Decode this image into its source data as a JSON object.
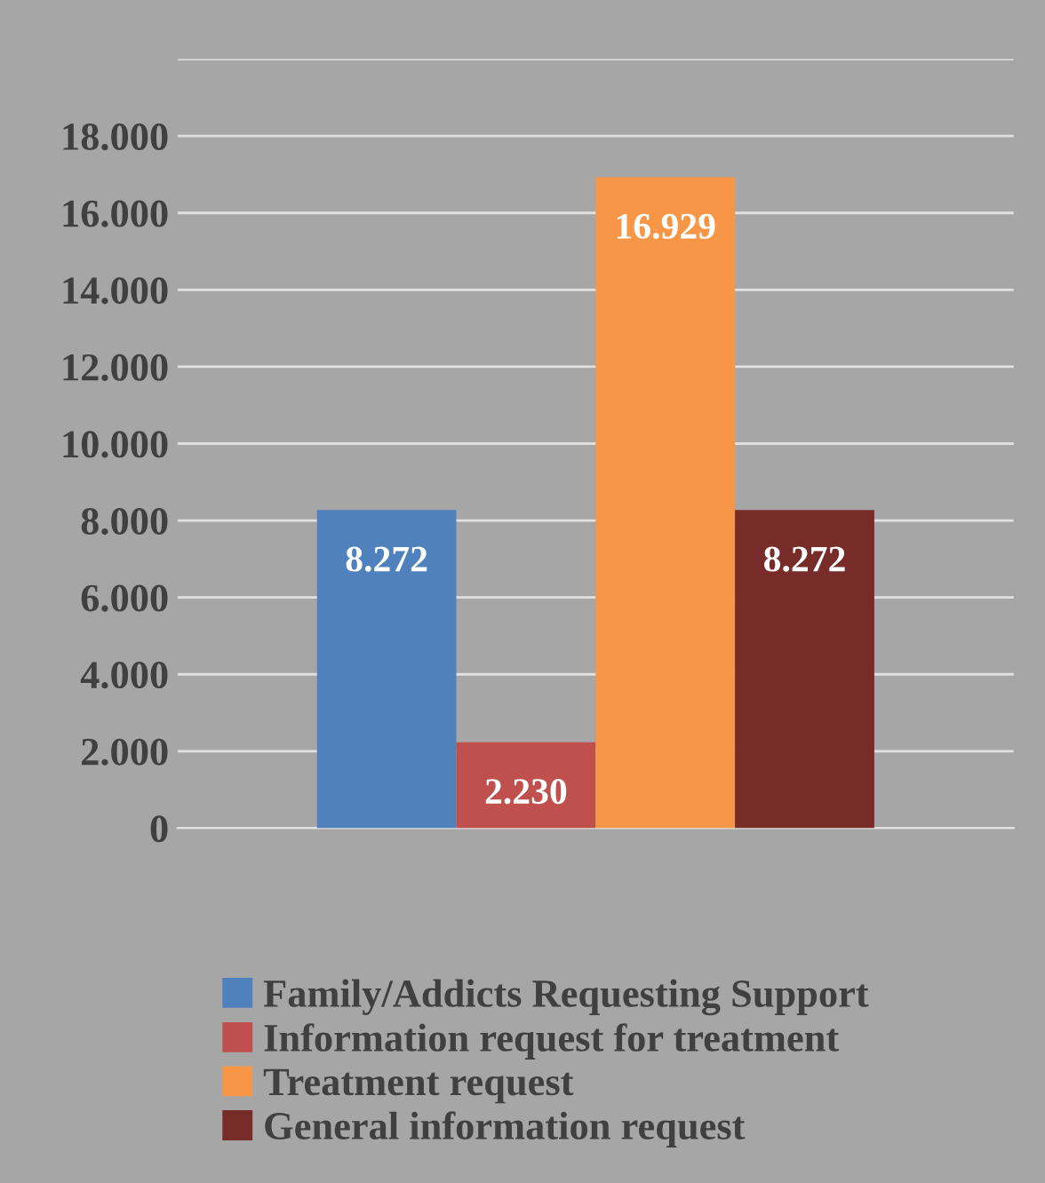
{
  "chart_data": {
    "type": "bar",
    "categories": [
      null
    ],
    "series": [
      {
        "name": "Family/Addicts Requesting Support",
        "color": "#4f81bd",
        "values": [
          8272
        ],
        "value_labels": [
          "8.272"
        ]
      },
      {
        "name": "Information request for treatment",
        "color": "#c0504d",
        "values": [
          2230
        ],
        "value_labels": [
          "2.230"
        ]
      },
      {
        "name": "Treatment request",
        "color": "#f79646",
        "values": [
          16929
        ],
        "value_labels": [
          "16.929"
        ]
      },
      {
        "name": "General information request",
        "color": "#772c2a",
        "values": [
          8272
        ],
        "value_labels": [
          "8.272"
        ]
      }
    ],
    "ylim": [
      0,
      20000
    ],
    "yticks": [
      {
        "value": 0,
        "label": "0"
      },
      {
        "value": 2000,
        "label": "2.000"
      },
      {
        "value": 4000,
        "label": "4.000"
      },
      {
        "value": 6000,
        "label": "6.000"
      },
      {
        "value": 8000,
        "label": "8.000"
      },
      {
        "value": 10000,
        "label": "10.000"
      },
      {
        "value": 12000,
        "label": "12.000"
      },
      {
        "value": 14000,
        "label": "14.000"
      },
      {
        "value": 16000,
        "label": "16.000"
      },
      {
        "value": 18000,
        "label": "18.000"
      },
      {
        "value": 20000,
        "label": null
      }
    ],
    "grid": "y",
    "legend": "bottom"
  }
}
